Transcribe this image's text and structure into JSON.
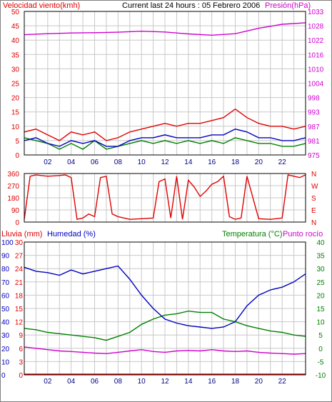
{
  "chart_data": [
    {
      "type": "line",
      "panel": "wind",
      "title": "Current last 24 hours : 05 Febrero 2006",
      "left_label": "Velocidad viento(kmh)",
      "right_label": "Presión(hPa)",
      "left_ticks": [
        "50",
        "45",
        "40",
        "35",
        "30",
        "25",
        "20",
        "15",
        "10",
        "5",
        "0"
      ],
      "right_ticks": [
        "1033",
        "1028",
        "1022",
        "1016",
        "1010",
        "1004",
        "998",
        "993",
        "987",
        "981",
        "975"
      ],
      "ylim_left": [
        0,
        50
      ],
      "ylim_right": [
        975,
        1033
      ],
      "x_ticks": [
        "02",
        "04",
        "06",
        "08",
        "10",
        "12",
        "14",
        "16",
        "18",
        "20",
        "22"
      ],
      "grid": true,
      "colors": {
        "gust": "#e00000",
        "average": "#0000c0",
        "direction_speed": "#008000",
        "pressure": "#d000d0",
        "left_axis": "#e00000",
        "right_axis": "#d000d0"
      },
      "series": [
        {
          "key": "pressure",
          "axis": "right",
          "x": [
            0,
            2,
            4,
            6,
            8,
            10,
            12,
            14,
            16,
            18,
            20,
            22,
            24
          ],
          "values": [
            1023.6,
            1024.0,
            1024.3,
            1024.4,
            1024.6,
            1025.0,
            1024.7,
            1023.9,
            1023.4,
            1024.0,
            1026.2,
            1027.8,
            1028.4
          ]
        },
        {
          "key": "gust",
          "axis": "left",
          "x": [
            0,
            1,
            2,
            3,
            4,
            5,
            6,
            7,
            8,
            9,
            10,
            11,
            12,
            13,
            14,
            15,
            16,
            17,
            18,
            19,
            20,
            21,
            22,
            23,
            24
          ],
          "values": [
            8,
            9,
            7,
            5,
            8,
            7,
            8,
            5,
            6,
            8,
            9,
            10,
            11,
            10,
            11,
            11,
            12,
            13,
            16,
            13,
            11,
            10,
            10,
            9,
            10
          ]
        },
        {
          "key": "average",
          "axis": "left",
          "x": [
            0,
            1,
            2,
            3,
            4,
            5,
            6,
            7,
            8,
            9,
            10,
            11,
            12,
            13,
            14,
            15,
            16,
            17,
            18,
            19,
            20,
            21,
            22,
            23,
            24
          ],
          "values": [
            5,
            6,
            4,
            3,
            5,
            4,
            5,
            3,
            3,
            5,
            6,
            6,
            7,
            6,
            6,
            6,
            7,
            7,
            9,
            8,
            6,
            6,
            5,
            5,
            6
          ]
        },
        {
          "key": "direction_speed",
          "axis": "left",
          "x": [
            0,
            1,
            2,
            3,
            4,
            5,
            6,
            7,
            8,
            9,
            10,
            11,
            12,
            13,
            14,
            15,
            16,
            17,
            18,
            19,
            20,
            21,
            22,
            23,
            24
          ],
          "values": [
            6,
            5,
            4,
            2,
            4,
            2,
            5,
            2,
            3,
            4,
            5,
            4,
            5,
            4,
            5,
            4,
            5,
            4,
            6,
            5,
            4,
            4,
            3,
            3,
            4
          ]
        }
      ]
    },
    {
      "type": "line",
      "panel": "direction",
      "left_ticks": [
        "360",
        "270",
        "180",
        "90",
        "0"
      ],
      "right_ticks": [
        "N",
        "W",
        "S",
        "E",
        "N"
      ],
      "ylim": [
        0,
        360
      ],
      "grid": true,
      "colors": {
        "direction": "#e00000"
      },
      "series": [
        {
          "key": "direction",
          "x": [
            0,
            0.5,
            1,
            2,
            3,
            3.5,
            4,
            4.5,
            5,
            5.5,
            6,
            6.5,
            7,
            7.5,
            8,
            9,
            10,
            11,
            11.5,
            12,
            12.5,
            13,
            13.5,
            14,
            14.5,
            15,
            15.5,
            16,
            16.5,
            17,
            17.5,
            18,
            18.5,
            19,
            20,
            21,
            22,
            22.5,
            23,
            23.5,
            24
          ],
          "values": [
            20,
            340,
            350,
            340,
            345,
            350,
            330,
            20,
            30,
            60,
            40,
            330,
            340,
            60,
            40,
            20,
            25,
            30,
            300,
            320,
            30,
            340,
            20,
            310,
            260,
            190,
            230,
            280,
            300,
            340,
            40,
            20,
            30,
            340,
            25,
            20,
            30,
            350,
            340,
            330,
            350
          ]
        }
      ]
    },
    {
      "type": "line",
      "panel": "humidity_temperature",
      "lluvia_label": "Lluvia (mm)",
      "humidity_label": "Humedad (%)",
      "temp_label": "Temperatura (°C)",
      "dew_label": "Punto rocío",
      "left1_ticks": [
        "30",
        "27",
        "24",
        "21",
        "18",
        "15",
        "12",
        "9",
        "6",
        "3",
        "0"
      ],
      "left2_ticks": [
        "100",
        "90",
        "80",
        "70",
        "60",
        "50",
        "40",
        "30",
        "20",
        "10",
        "0"
      ],
      "right_ticks": [
        "40",
        "35",
        "30",
        "25",
        "20",
        "15",
        "10",
        "5",
        "0",
        "-5",
        "-10"
      ],
      "ylim_humidity": [
        0,
        100
      ],
      "ylim_temperature": [
        -10,
        40
      ],
      "x_ticks": [
        "02",
        "04",
        "06",
        "08",
        "10",
        "12",
        "14",
        "16",
        "18",
        "20",
        "22"
      ],
      "grid": true,
      "colors": {
        "humidity": "#0000c0",
        "temperature": "#008000",
        "dew_point": "#d000d0",
        "rain": "#e00000",
        "lluvia_axis": "#e00000",
        "humidity_axis": "#0000c0",
        "temp_axis": "#008000"
      },
      "series": [
        {
          "key": "humidity",
          "axis": "humidity",
          "x": [
            0,
            1,
            2,
            3,
            4,
            5,
            6,
            7,
            8,
            9,
            10,
            11,
            12,
            13,
            14,
            15,
            16,
            17,
            18,
            19,
            20,
            21,
            22,
            23,
            24
          ],
          "values": [
            81,
            78,
            77,
            75,
            79,
            76,
            78,
            80,
            82,
            72,
            60,
            50,
            42,
            39,
            37,
            36,
            35,
            36,
            40,
            52,
            60,
            64,
            66,
            70,
            76
          ]
        },
        {
          "key": "temperature",
          "axis": "temperature",
          "x": [
            0,
            1,
            2,
            3,
            4,
            5,
            6,
            7,
            8,
            9,
            10,
            11,
            12,
            13,
            14,
            15,
            16,
            17,
            18,
            19,
            20,
            21,
            22,
            23,
            24
          ],
          "values": [
            7.5,
            7.0,
            6.0,
            5.5,
            5.0,
            4.5,
            4.0,
            3.0,
            4.5,
            6.0,
            9.0,
            11.0,
            12.5,
            13.0,
            14.0,
            13.5,
            13.5,
            11.0,
            10.0,
            8.5,
            7.5,
            6.5,
            6.0,
            5.0,
            4.5
          ]
        },
        {
          "key": "dew_point",
          "axis": "temperature",
          "x": [
            0,
            1,
            2,
            3,
            4,
            5,
            6,
            7,
            8,
            9,
            10,
            11,
            12,
            13,
            14,
            15,
            16,
            17,
            18,
            19,
            20,
            21,
            22,
            23,
            24
          ],
          "values": [
            0.5,
            0.0,
            -0.5,
            -1.0,
            -1.2,
            -1.5,
            -1.8,
            -2.0,
            -1.5,
            -1.0,
            -0.5,
            -1.2,
            -1.5,
            -1.0,
            -0.8,
            -1.0,
            -0.5,
            -1.0,
            -1.2,
            -1.0,
            -1.5,
            -1.8,
            -2.0,
            -2.2,
            -2.0
          ]
        },
        {
          "key": "rain",
          "axis": "lluvia",
          "x": [
            0,
            24
          ],
          "values": [
            0,
            0
          ]
        }
      ]
    }
  ]
}
